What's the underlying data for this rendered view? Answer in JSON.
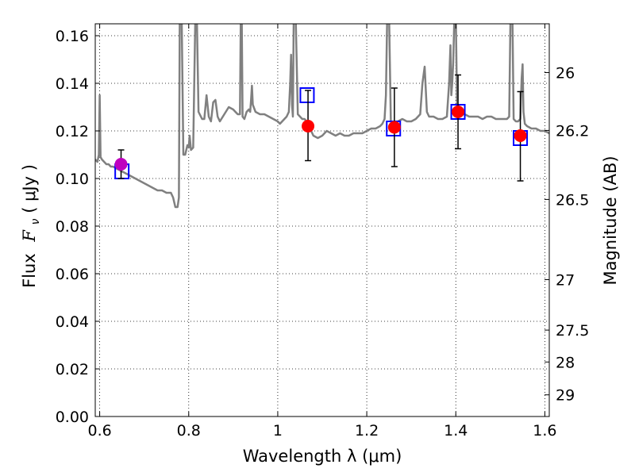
{
  "chart_data": {
    "type": "scatter",
    "xlabel": "Wavelength  λ (μm)",
    "ylabel_prefix": "Flux",
    "ylabel_math": "F",
    "ylabel_sub": "ν",
    "ylabel_unit": " ( μJy )",
    "y2label": "Magnitude (AB)",
    "xlim": [
      0.59,
      1.61
    ],
    "ylim": [
      0.0,
      0.165
    ],
    "grid": true,
    "grid_style": "dotted",
    "x_ticks": [
      0.6,
      0.8,
      1.0,
      1.2,
      1.4,
      1.6
    ],
    "x_tick_labels": [
      "0.6",
      "0.8",
      "1",
      "1.2",
      "1.4",
      "1.6"
    ],
    "y_ticks": [
      0.0,
      0.02,
      0.04,
      0.06,
      0.08,
      0.1,
      0.12,
      0.14,
      0.16
    ],
    "y_tick_labels": [
      "0.00",
      "0.02",
      "0.04",
      "0.06",
      "0.08",
      "0.10",
      "0.12",
      "0.14",
      "0.16"
    ],
    "y2_ticks": [
      {
        "label": "26",
        "flux": 0.1445
      },
      {
        "label": "26.2",
        "flux": 0.1202
      },
      {
        "label": "26.5",
        "flux": 0.0912
      },
      {
        "label": "27",
        "flux": 0.0575
      },
      {
        "label": "27.5",
        "flux": 0.0363
      },
      {
        "label": "28",
        "flux": 0.0229
      },
      {
        "label": "29",
        "flux": 0.0091
      }
    ],
    "series": [
      {
        "type": "line",
        "color": "#808080",
        "points": [
          [
            0.59,
            0.108
          ],
          [
            0.595,
            0.107
          ],
          [
            0.598,
            0.11
          ],
          [
            0.6,
            0.135
          ],
          [
            0.602,
            0.109
          ],
          [
            0.605,
            0.108
          ],
          [
            0.61,
            0.107
          ],
          [
            0.615,
            0.106
          ],
          [
            0.62,
            0.106
          ],
          [
            0.625,
            0.105
          ],
          [
            0.63,
            0.105
          ],
          [
            0.64,
            0.104
          ],
          [
            0.65,
            0.103
          ],
          [
            0.66,
            0.102
          ],
          [
            0.67,
            0.101
          ],
          [
            0.68,
            0.1
          ],
          [
            0.69,
            0.099
          ],
          [
            0.7,
            0.098
          ],
          [
            0.71,
            0.097
          ],
          [
            0.72,
            0.096
          ],
          [
            0.73,
            0.095
          ],
          [
            0.74,
            0.095
          ],
          [
            0.75,
            0.094
          ],
          [
            0.76,
            0.094
          ],
          [
            0.765,
            0.092
          ],
          [
            0.77,
            0.088
          ],
          [
            0.775,
            0.088
          ],
          [
            0.778,
            0.092
          ],
          [
            0.78,
            0.17
          ],
          [
            0.784,
            0.17
          ],
          [
            0.788,
            0.11
          ],
          [
            0.792,
            0.11
          ],
          [
            0.797,
            0.114
          ],
          [
            0.8,
            0.113
          ],
          [
            0.802,
            0.118
          ],
          [
            0.805,
            0.112
          ],
          [
            0.81,
            0.113
          ],
          [
            0.815,
            0.17
          ],
          [
            0.818,
            0.17
          ],
          [
            0.822,
            0.128
          ],
          [
            0.83,
            0.125
          ],
          [
            0.835,
            0.125
          ],
          [
            0.84,
            0.135
          ],
          [
            0.845,
            0.126
          ],
          [
            0.85,
            0.124
          ],
          [
            0.855,
            0.132
          ],
          [
            0.86,
            0.133
          ],
          [
            0.865,
            0.126
          ],
          [
            0.87,
            0.124
          ],
          [
            0.88,
            0.127
          ],
          [
            0.89,
            0.13
          ],
          [
            0.9,
            0.129
          ],
          [
            0.905,
            0.128
          ],
          [
            0.91,
            0.127
          ],
          [
            0.915,
            0.127
          ],
          [
            0.917,
            0.17
          ],
          [
            0.919,
            0.17
          ],
          [
            0.921,
            0.126
          ],
          [
            0.925,
            0.125
          ],
          [
            0.93,
            0.128
          ],
          [
            0.935,
            0.129
          ],
          [
            0.938,
            0.128
          ],
          [
            0.94,
            0.133
          ],
          [
            0.942,
            0.139
          ],
          [
            0.944,
            0.131
          ],
          [
            0.95,
            0.128
          ],
          [
            0.96,
            0.127
          ],
          [
            0.97,
            0.127
          ],
          [
            0.98,
            0.126
          ],
          [
            0.99,
            0.125
          ],
          [
            1.0,
            0.124
          ],
          [
            1.005,
            0.123
          ],
          [
            1.01,
            0.124
          ],
          [
            1.015,
            0.125
          ],
          [
            1.02,
            0.126
          ],
          [
            1.025,
            0.128
          ],
          [
            1.028,
            0.14
          ],
          [
            1.03,
            0.152
          ],
          [
            1.032,
            0.131
          ],
          [
            1.034,
            0.126
          ],
          [
            1.036,
            0.17
          ],
          [
            1.04,
            0.17
          ],
          [
            1.045,
            0.127
          ],
          [
            1.05,
            0.126
          ],
          [
            1.055,
            0.125
          ],
          [
            1.06,
            0.125
          ],
          [
            1.065,
            0.124
          ],
          [
            1.07,
            0.122
          ],
          [
            1.075,
            0.12
          ],
          [
            1.08,
            0.118
          ],
          [
            1.09,
            0.117
          ],
          [
            1.1,
            0.118
          ],
          [
            1.11,
            0.12
          ],
          [
            1.12,
            0.119
          ],
          [
            1.13,
            0.118
          ],
          [
            1.14,
            0.119
          ],
          [
            1.15,
            0.118
          ],
          [
            1.16,
            0.118
          ],
          [
            1.17,
            0.119
          ],
          [
            1.18,
            0.119
          ],
          [
            1.19,
            0.119
          ],
          [
            1.2,
            0.12
          ],
          [
            1.21,
            0.121
          ],
          [
            1.22,
            0.121
          ],
          [
            1.23,
            0.122
          ],
          [
            1.235,
            0.123
          ],
          [
            1.24,
            0.125
          ],
          [
            1.243,
            0.135
          ],
          [
            1.246,
            0.17
          ],
          [
            1.25,
            0.17
          ],
          [
            1.254,
            0.124
          ],
          [
            1.26,
            0.123
          ],
          [
            1.27,
            0.124
          ],
          [
            1.28,
            0.125
          ],
          [
            1.29,
            0.124
          ],
          [
            1.3,
            0.124
          ],
          [
            1.31,
            0.125
          ],
          [
            1.32,
            0.127
          ],
          [
            1.325,
            0.14
          ],
          [
            1.33,
            0.147
          ],
          [
            1.335,
            0.128
          ],
          [
            1.34,
            0.126
          ],
          [
            1.35,
            0.126
          ],
          [
            1.36,
            0.125
          ],
          [
            1.37,
            0.125
          ],
          [
            1.38,
            0.126
          ],
          [
            1.385,
            0.14
          ],
          [
            1.388,
            0.156
          ],
          [
            1.39,
            0.135
          ],
          [
            1.392,
            0.14
          ],
          [
            1.394,
            0.148
          ],
          [
            1.397,
            0.17
          ],
          [
            1.4,
            0.17
          ],
          [
            1.403,
            0.128
          ],
          [
            1.41,
            0.127
          ],
          [
            1.42,
            0.127
          ],
          [
            1.43,
            0.126
          ],
          [
            1.44,
            0.126
          ],
          [
            1.45,
            0.126
          ],
          [
            1.46,
            0.125
          ],
          [
            1.47,
            0.126
          ],
          [
            1.48,
            0.126
          ],
          [
            1.49,
            0.125
          ],
          [
            1.5,
            0.125
          ],
          [
            1.51,
            0.125
          ],
          [
            1.515,
            0.125
          ],
          [
            1.52,
            0.126
          ],
          [
            1.523,
            0.17
          ],
          [
            1.527,
            0.17
          ],
          [
            1.53,
            0.125
          ],
          [
            1.535,
            0.124
          ],
          [
            1.54,
            0.124
          ],
          [
            1.545,
            0.125
          ],
          [
            1.548,
            0.142
          ],
          [
            1.55,
            0.148
          ],
          [
            1.552,
            0.128
          ],
          [
            1.555,
            0.123
          ],
          [
            1.56,
            0.122
          ],
          [
            1.57,
            0.121
          ],
          [
            1.58,
            0.121
          ],
          [
            1.59,
            0.12
          ],
          [
            1.6,
            0.12
          ],
          [
            1.61,
            0.119
          ]
        ]
      },
      {
        "type": "model_boxes",
        "marker": "square",
        "color": "#0000ff",
        "x": [
          0.65,
          1.066,
          1.26,
          1.405,
          1.545
        ],
        "y": [
          0.103,
          0.135,
          0.121,
          0.128,
          0.117
        ]
      },
      {
        "type": "points_with_errors",
        "marker": "circle",
        "x": [
          0.648,
          1.068,
          1.262,
          1.405,
          1.545
        ],
        "y": [
          0.106,
          0.122,
          0.1215,
          0.128,
          0.118
        ],
        "yerr_low": [
          0.1,
          0.1075,
          0.105,
          0.1125,
          0.099
        ],
        "yerr_high": [
          0.112,
          0.137,
          0.138,
          0.1435,
          0.1365
        ],
        "colors": [
          "#bf00bf",
          "#ff0000",
          "#ff0000",
          "#ff0000",
          "#ff0000"
        ]
      }
    ]
  }
}
